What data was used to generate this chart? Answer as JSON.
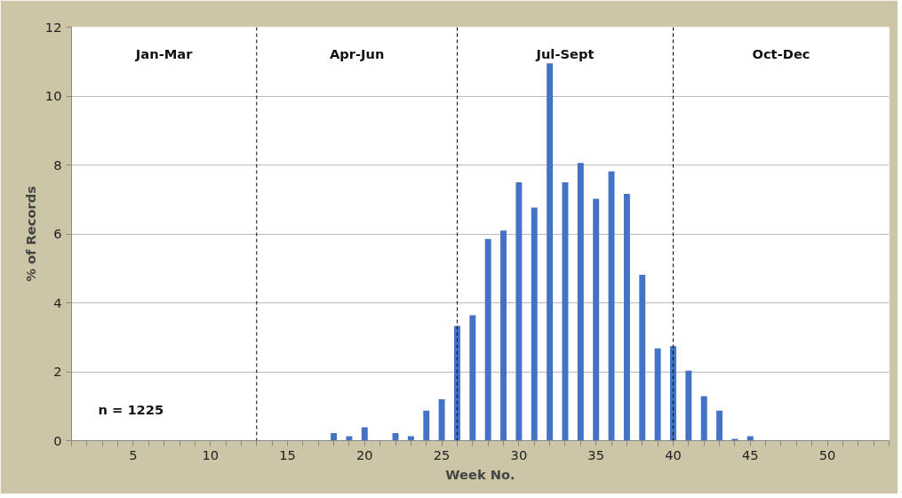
{
  "chart_data": {
    "type": "bar",
    "xlabel": "Week No.",
    "ylabel": "% of Records",
    "x": [
      18,
      19,
      20,
      21,
      22,
      23,
      24,
      25,
      26,
      27,
      28,
      29,
      30,
      31,
      32,
      33,
      34,
      35,
      36,
      37,
      38,
      39,
      40,
      41,
      42,
      43,
      44,
      45
    ],
    "values": [
      0.22,
      0.13,
      0.39,
      0,
      0.22,
      0.13,
      0.87,
      1.2,
      3.33,
      3.64,
      5.85,
      6.1,
      7.5,
      6.76,
      10.95,
      7.5,
      8.06,
      7.02,
      7.81,
      7.16,
      4.81,
      2.68,
      2.74,
      2.03,
      1.29,
      0.87,
      0.05,
      0.13
    ],
    "color": "#4472c4",
    "xlim": [
      1,
      54
    ],
    "ylim": [
      0,
      12
    ],
    "yticks": [
      0,
      2,
      4,
      6,
      8,
      10,
      12
    ],
    "xticks": [
      {
        "value": 1,
        "label": null
      },
      {
        "value": 2,
        "label": null
      },
      {
        "value": 3,
        "label": null
      },
      {
        "value": 4,
        "label": null
      },
      5,
      {
        "value": 6,
        "label": null
      },
      {
        "value": 7,
        "label": null
      },
      {
        "value": 8,
        "label": null
      },
      {
        "value": 9,
        "label": null
      },
      10,
      {
        "value": 11,
        "label": null
      },
      {
        "value": 12,
        "label": null
      },
      {
        "value": 13,
        "label": null
      },
      {
        "value": 14,
        "label": null
      },
      15,
      {
        "value": 16,
        "label": null
      },
      {
        "value": 17,
        "label": null
      },
      {
        "value": 18,
        "label": null
      },
      {
        "value": 19,
        "label": null
      },
      20,
      {
        "value": 21,
        "label": null
      },
      {
        "value": 22,
        "label": null
      },
      {
        "value": 23,
        "label": null
      },
      {
        "value": 24,
        "label": null
      },
      25,
      {
        "value": 26,
        "label": null
      },
      {
        "value": 27,
        "label": null
      },
      {
        "value": 28,
        "label": null
      },
      {
        "value": 29,
        "label": null
      },
      30,
      {
        "value": 31,
        "label": null
      },
      {
        "value": 32,
        "label": null
      },
      {
        "value": 33,
        "label": null
      },
      {
        "value": 34,
        "label": null
      },
      35,
      {
        "value": 36,
        "label": null
      },
      {
        "value": 37,
        "label": null
      },
      {
        "value": 38,
        "label": null
      },
      {
        "value": 39,
        "label": null
      },
      40,
      {
        "value": 41,
        "label": null
      },
      {
        "value": 42,
        "label": null
      },
      {
        "value": 43,
        "label": null
      },
      {
        "value": 44,
        "label": null
      },
      45,
      {
        "value": 46,
        "label": null
      },
      {
        "value": 47,
        "label": null
      },
      {
        "value": 48,
        "label": null
      },
      {
        "value": 49,
        "label": null
      },
      50,
      {
        "value": 51,
        "label": null
      },
      {
        "value": 52,
        "label": null
      },
      {
        "value": 53,
        "label": null
      },
      {
        "value": 54,
        "label": null
      }
    ],
    "grid": "y",
    "ref_lines": [
      {
        "axis": "x",
        "value": 13,
        "line_style": "dashed",
        "color": "#000000"
      },
      {
        "axis": "x",
        "value": 26,
        "line_style": "dashed",
        "color": "#000000"
      },
      {
        "axis": "x",
        "value": 40,
        "line_style": "dashed",
        "color": "#000000"
      }
    ],
    "annotations": [
      "Jan-Mar",
      "Apr-Jun",
      "Jul-Sept",
      "Oct-Dec",
      "n = 1225"
    ]
  }
}
